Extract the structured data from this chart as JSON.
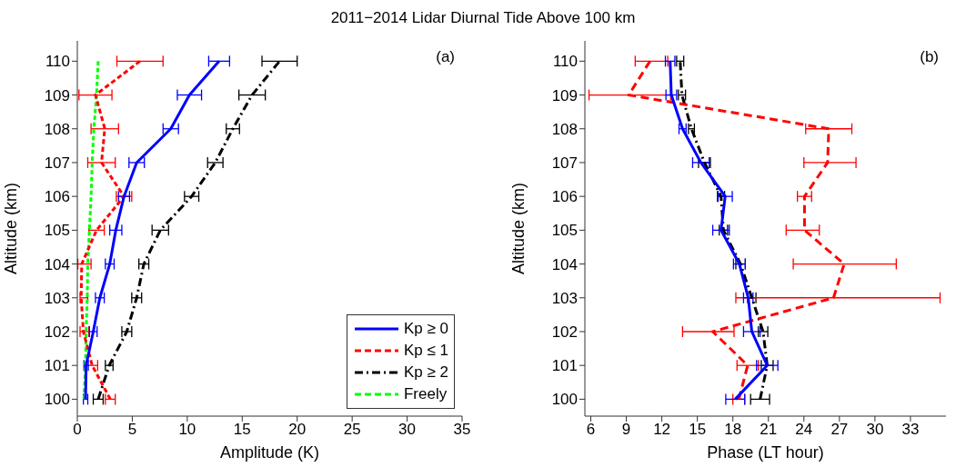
{
  "chart_data": [
    {
      "type": "line",
      "title": "2011−2014 Lidar Diurnal Tide Above 100 km",
      "xlabel": "Amplitude (K)",
      "ylabel": "Altitude (km)",
      "annotations": [
        "(a)"
      ],
      "xlim": [
        0,
        35
      ],
      "xticks": [
        0,
        5,
        10,
        15,
        20,
        25,
        30,
        35
      ],
      "ylim": [
        99.5,
        110.6
      ],
      "yticks": [
        100,
        101,
        102,
        103,
        104,
        105,
        106,
        107,
        108,
        109,
        110
      ],
      "grid": false,
      "legend": "bottom right",
      "marker": "none",
      "series": [
        {
          "name": "Kp ≥ 0",
          "color": "#0000ff",
          "line_style": "solid",
          "x": [
            0.75,
            0.8,
            1.45,
            2.05,
            2.95,
            3.5,
            4.25,
            5.4,
            8.5,
            10.2,
            12.9
          ],
          "values": [
            100,
            101,
            102,
            103,
            104,
            105,
            106,
            107,
            108,
            109,
            110
          ],
          "xerrors": [
            0.2,
            0.2,
            0.35,
            0.4,
            0.4,
            0.55,
            0.5,
            0.7,
            0.7,
            1.1,
            0.95
          ]
        },
        {
          "name": "Kp ≤ 1",
          "color": "#ff0000",
          "line_style": "dashed",
          "x": [
            3.0,
            1.35,
            0.55,
            0.35,
            0.4,
            1.75,
            4.25,
            2.2,
            2.5,
            1.65,
            5.7
          ],
          "values": [
            100,
            101,
            102,
            103,
            104,
            105,
            106,
            107,
            108,
            109,
            110
          ],
          "xerrors": [
            0.45,
            0.5,
            [
              0.25,
              1.05
            ],
            [
              0.25,
              0.95
            ],
            [
              0.05,
              1.25
            ],
            0.7,
            0.7,
            1.25,
            1.25,
            1.5,
            2.1
          ]
        },
        {
          "name": "Kp ≥ 2",
          "color": "#000000",
          "line_style": "dashdot",
          "x": [
            1.9,
            2.9,
            4.5,
            5.4,
            6.05,
            7.55,
            10.4,
            12.55,
            14.15,
            15.9,
            18.4
          ],
          "values": [
            100,
            101,
            102,
            103,
            104,
            105,
            106,
            107,
            108,
            109,
            110
          ],
          "xerrors": [
            0.45,
            0.35,
            0.45,
            0.45,
            0.45,
            0.75,
            0.65,
            0.7,
            0.6,
            1.2,
            1.6
          ]
        },
        {
          "name": "Freely",
          "color": "#00ff00",
          "line_style": "dashed",
          "x": [
            0.6,
            0.75,
            0.8,
            0.9,
            0.95,
            1.1,
            1.25,
            1.35,
            1.5,
            1.75,
            1.9
          ],
          "values": [
            100,
            101,
            102,
            103,
            104,
            105,
            106,
            107,
            108,
            109,
            110
          ]
        }
      ]
    },
    {
      "type": "line",
      "xlabel": "Phase (LT hour)",
      "ylabel": "Altitude (km)",
      "annotations": [
        "(b)"
      ],
      "xlim": [
        5.5,
        36
      ],
      "xticks": [
        6,
        9,
        12,
        15,
        18,
        21,
        24,
        27,
        30,
        33
      ],
      "ylim": [
        99.5,
        110.6
      ],
      "yticks": [
        100,
        101,
        102,
        103,
        104,
        105,
        106,
        107,
        108,
        109,
        110
      ],
      "grid": false,
      "marker": "none",
      "series": [
        {
          "color": "#0000ff",
          "line_style": "solid",
          "x": [
            18.2,
            20.9,
            19.6,
            19.3,
            18.55,
            17.0,
            17.35,
            15.3,
            13.75,
            12.8,
            12.7
          ],
          "values": [
            100,
            101,
            102,
            103,
            104,
            105,
            106,
            107,
            108,
            109,
            110
          ],
          "xerrors": [
            0.8,
            0.9,
            0.7,
            0.4,
            0.5,
            0.7,
            0.6,
            0.7,
            0.3,
            0.45,
            0.4
          ]
        },
        {
          "color": "#ff0000",
          "line_style": "dashed",
          "x": [
            18.5,
            19.25,
            16.3,
            26.5,
            27.4,
            24.05,
            24.05,
            26.0,
            26.1,
            9.2,
            11.0
          ],
          "values": [
            100,
            101,
            102,
            103,
            104,
            105,
            106,
            107,
            108,
            109,
            110
          ],
          "xerrors": [
            0.5,
            0.9,
            [
              13.75,
              18.1
            ],
            [
              18.25,
              35.5
            ],
            [
              23.1,
              31.8
            ],
            [
              22.5,
              25.3
            ],
            0.6,
            [
              24.0,
              28.4
            ],
            1.95,
            [
              5.85,
              12.75
            ],
            [
              9.75,
              12.5
            ]
          ]
        },
        {
          "color": "#000000",
          "line_style": "dashdot",
          "x": [
            20.3,
            20.9,
            20.55,
            19.6,
            18.65,
            17.2,
            17.0,
            15.6,
            14.5,
            13.7,
            13.55
          ],
          "values": [
            100,
            101,
            102,
            103,
            104,
            105,
            106,
            107,
            108,
            109,
            110
          ],
          "xerrors": [
            0.8,
            0.5,
            0.4,
            0.35,
            0.4,
            0.35,
            0.3,
            0.5,
            0.25,
            0.3,
            0.3
          ]
        }
      ]
    }
  ]
}
